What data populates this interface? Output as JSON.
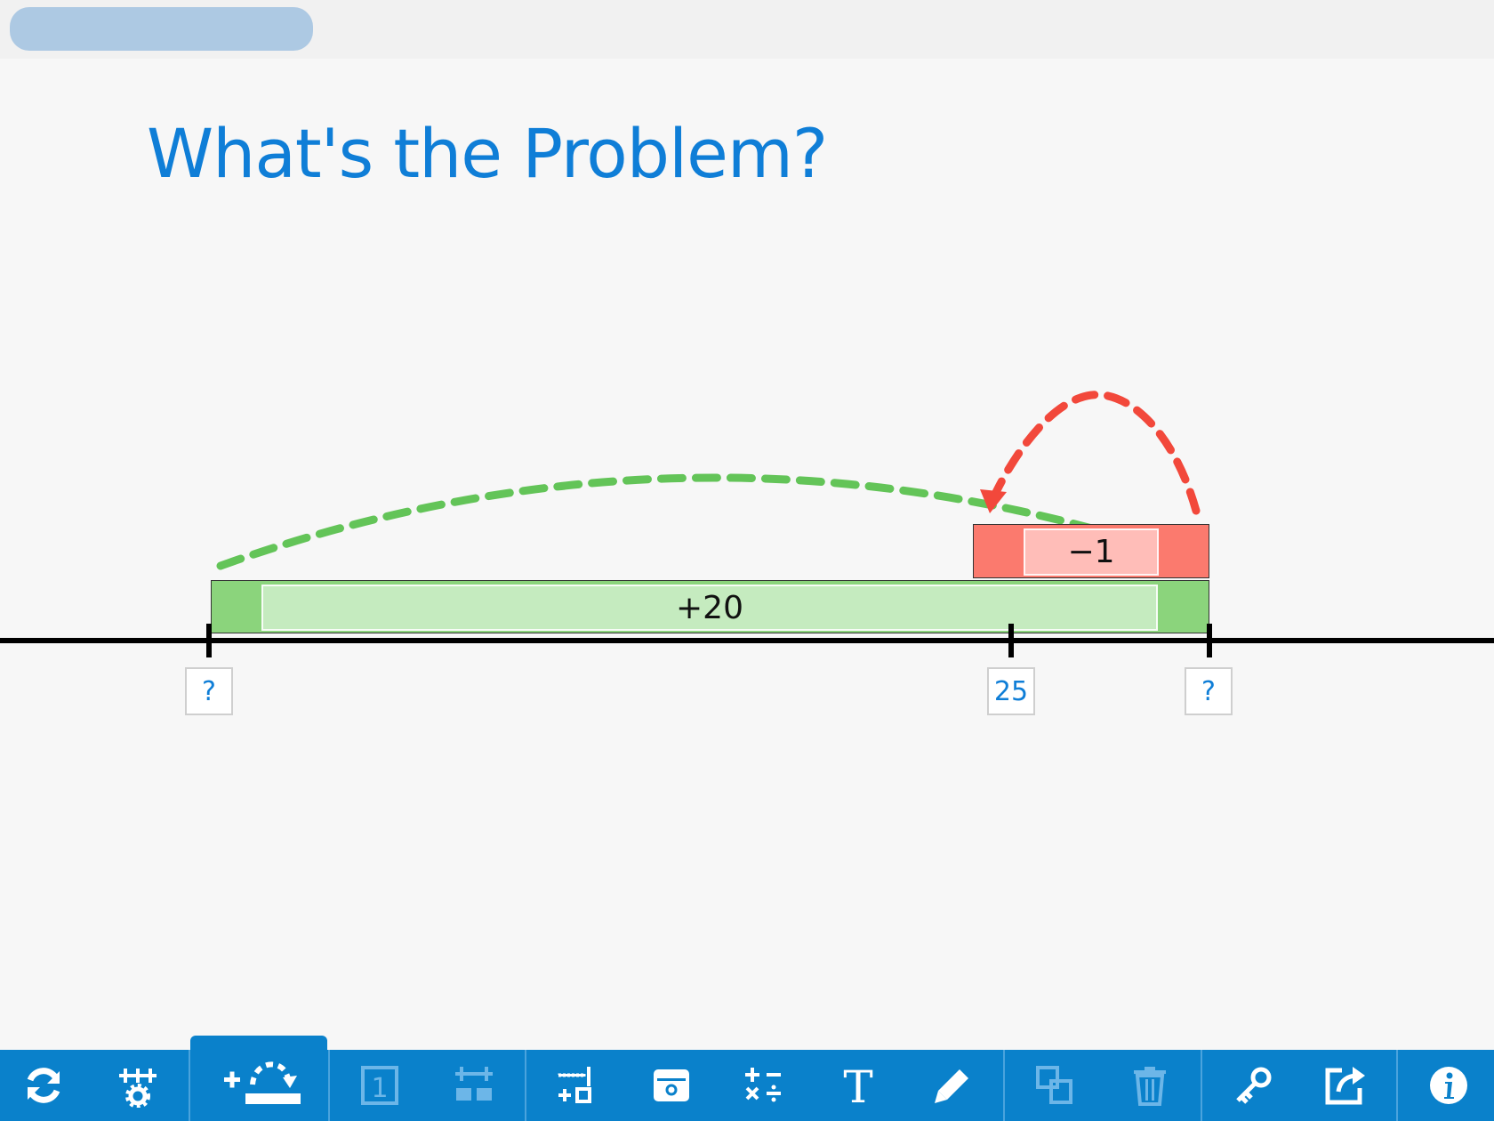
{
  "header": {
    "title": "What's the Problem?"
  },
  "number_line": {
    "tick_labels": [
      "?",
      "25",
      "?"
    ],
    "jumps": [
      {
        "label": "+20",
        "color": "#8bd47c",
        "inner_color": "#c5ebbf",
        "arc_color": "#63c458"
      },
      {
        "label": "−1",
        "color": "#fb7a6e",
        "inner_color": "#ffbdb8",
        "arc_color": "#f2483b"
      }
    ]
  },
  "toolbar": {
    "accent": "#0a81cb",
    "tools": [
      {
        "icon": "refresh-icon"
      },
      {
        "icon": "number-line-settings-icon"
      },
      {
        "icon": "add-jump-icon",
        "active": true
      },
      {
        "icon": "number-tile-icon"
      },
      {
        "icon": "tick-marks-icon"
      },
      {
        "icon": "add-bar-icon"
      },
      {
        "icon": "hide-reveal-icon"
      },
      {
        "icon": "operations-icon"
      },
      {
        "icon": "text-icon"
      },
      {
        "icon": "pencil-icon"
      },
      {
        "icon": "duplicate-icon"
      },
      {
        "icon": "trash-icon"
      },
      {
        "icon": "key-icon"
      },
      {
        "icon": "share-icon"
      },
      {
        "icon": "info-icon"
      }
    ]
  }
}
